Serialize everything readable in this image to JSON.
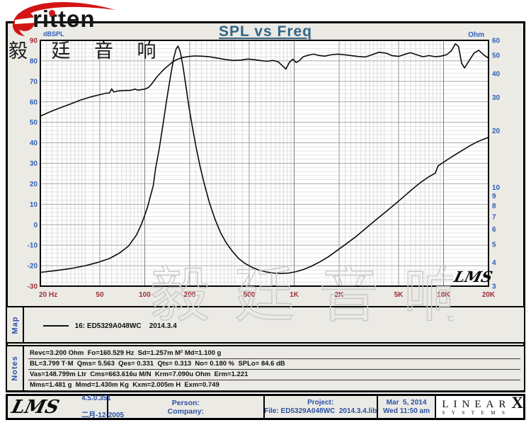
{
  "title": "SPL vs Freq",
  "brand": {
    "word": "ritten",
    "chinese": "毅 廷 音 响",
    "logo_color": "#d41414"
  },
  "watermark_text": "毅 廷 音 响",
  "plot_logo": "LMS",
  "chart_data": {
    "type": "line",
    "title": "SPL vs Freq",
    "x_axis": {
      "label": "Hz",
      "scale": "log",
      "min": 20,
      "max": 20000,
      "tick_values": [
        20,
        50,
        100,
        200,
        500,
        1000,
        2000,
        5000,
        10000,
        20000
      ],
      "tick_labels": [
        "20 Hz",
        "50",
        "100",
        "200",
        "500",
        "1K",
        "2K",
        "5K",
        "10K",
        "20K"
      ]
    },
    "y_left": {
      "label": "dBSPL",
      "scale": "linear",
      "min": -30,
      "max": 90,
      "ticks": [
        90,
        80,
        70,
        60,
        50,
        40,
        30,
        20,
        10,
        0,
        -10,
        -20,
        -30
      ]
    },
    "y_right": {
      "label": "Ohm",
      "scale": "log",
      "min": 3,
      "max": 60,
      "ticks": [
        60,
        50,
        40,
        30,
        20,
        10,
        9,
        8,
        7,
        6,
        5,
        4,
        3
      ]
    },
    "grid": "on",
    "series": [
      {
        "name": "SPL",
        "axis": "left",
        "points": [
          [
            20,
            53
          ],
          [
            23,
            55
          ],
          [
            27,
            57
          ],
          [
            32,
            59
          ],
          [
            37,
            60.8
          ],
          [
            43,
            62.3
          ],
          [
            50,
            63.5
          ],
          [
            55,
            64.2
          ],
          [
            58,
            64.3
          ],
          [
            60,
            66.3
          ],
          [
            62,
            64.8
          ],
          [
            66,
            65.3
          ],
          [
            72,
            65.5
          ],
          [
            80,
            65.6
          ],
          [
            86,
            66.2
          ],
          [
            90,
            65.7
          ],
          [
            100,
            66.2
          ],
          [
            106,
            67
          ],
          [
            112,
            69
          ],
          [
            120,
            72
          ],
          [
            130,
            74.8
          ],
          [
            140,
            77
          ],
          [
            152,
            79.2
          ],
          [
            163,
            80.6
          ],
          [
            178,
            81.6
          ],
          [
            195,
            82.1
          ],
          [
            215,
            82.4
          ],
          [
            240,
            82.3
          ],
          [
            270,
            82
          ],
          [
            305,
            81.4
          ],
          [
            345,
            80.7
          ],
          [
            390,
            80.2
          ],
          [
            440,
            80.4
          ],
          [
            490,
            80.9
          ],
          [
            540,
            80.6
          ],
          [
            600,
            80.1
          ],
          [
            660,
            79.8
          ],
          [
            720,
            80.2
          ],
          [
            780,
            79.6
          ],
          [
            830,
            77.8
          ],
          [
            880,
            76
          ],
          [
            930,
            79.3
          ],
          [
            980,
            80.8
          ],
          [
            1030,
            79.2
          ],
          [
            1080,
            80
          ],
          [
            1150,
            82
          ],
          [
            1250,
            82.8
          ],
          [
            1350,
            83.3
          ],
          [
            1450,
            82.7
          ],
          [
            1600,
            82.3
          ],
          [
            1750,
            82.9
          ],
          [
            1950,
            83.3
          ],
          [
            2150,
            83
          ],
          [
            2400,
            82.6
          ],
          [
            2700,
            82.1
          ],
          [
            3000,
            81.9
          ],
          [
            3300,
            82.9
          ],
          [
            3700,
            84.2
          ],
          [
            4100,
            83.8
          ],
          [
            4500,
            82.6
          ],
          [
            5000,
            82.2
          ],
          [
            5500,
            83.2
          ],
          [
            6000,
            84
          ],
          [
            6600,
            83
          ],
          [
            7300,
            82
          ],
          [
            8000,
            82.6
          ],
          [
            8800,
            82
          ],
          [
            9600,
            82.3
          ],
          [
            10500,
            83
          ],
          [
            11300,
            85
          ],
          [
            12000,
            88.3
          ],
          [
            12600,
            87
          ],
          [
            13200,
            79
          ],
          [
            13800,
            76.5
          ],
          [
            14800,
            80
          ],
          [
            16000,
            83.8
          ],
          [
            17200,
            85.2
          ],
          [
            18500,
            83
          ],
          [
            20000,
            81.3
          ]
        ]
      },
      {
        "name": "Impedance",
        "axis": "right",
        "points": [
          [
            20,
            3.55
          ],
          [
            25,
            3.62
          ],
          [
            32,
            3.72
          ],
          [
            40,
            3.85
          ],
          [
            48,
            4.0
          ],
          [
            58,
            4.2
          ],
          [
            68,
            4.5
          ],
          [
            78,
            4.9
          ],
          [
            88,
            5.6
          ],
          [
            96,
            6.5
          ],
          [
            104,
            7.8
          ],
          [
            110,
            9.2
          ],
          [
            114,
            10.2
          ],
          [
            118,
            12.5
          ],
          [
            125,
            16
          ],
          [
            133,
            22
          ],
          [
            141,
            30
          ],
          [
            149,
            39
          ],
          [
            156,
            48
          ],
          [
            162,
            54
          ],
          [
            167,
            56
          ],
          [
            173,
            52
          ],
          [
            180,
            44
          ],
          [
            188,
            35
          ],
          [
            197,
            27
          ],
          [
            208,
            21
          ],
          [
            220,
            16.5
          ],
          [
            235,
            12.8
          ],
          [
            252,
            10.2
          ],
          [
            272,
            8.2
          ],
          [
            295,
            6.8
          ],
          [
            320,
            5.8
          ],
          [
            350,
            5.1
          ],
          [
            385,
            4.6
          ],
          [
            425,
            4.2
          ],
          [
            470,
            3.95
          ],
          [
            520,
            3.78
          ],
          [
            580,
            3.65
          ],
          [
            650,
            3.57
          ],
          [
            730,
            3.52
          ],
          [
            820,
            3.5
          ],
          [
            920,
            3.52
          ],
          [
            1030,
            3.58
          ],
          [
            1160,
            3.68
          ],
          [
            1300,
            3.82
          ],
          [
            1500,
            4.05
          ],
          [
            1700,
            4.3
          ],
          [
            1950,
            4.65
          ],
          [
            2250,
            5.05
          ],
          [
            2600,
            5.5
          ],
          [
            3000,
            6.05
          ],
          [
            3500,
            6.7
          ],
          [
            4000,
            7.3
          ],
          [
            4600,
            8.0
          ],
          [
            5300,
            8.8
          ],
          [
            6100,
            9.7
          ],
          [
            7000,
            10.6
          ],
          [
            8000,
            11.4
          ],
          [
            8800,
            11.9
          ],
          [
            9200,
            13
          ],
          [
            10000,
            13.6
          ],
          [
            11500,
            14.6
          ],
          [
            13000,
            15.5
          ],
          [
            15000,
            16.6
          ],
          [
            17000,
            17.5
          ],
          [
            20000,
            18.4
          ]
        ]
      }
    ]
  },
  "colors": {
    "tick_blue": "#3060b5",
    "tick_maroon": "#9c3039",
    "curve": "#0b0b0b",
    "grid_major": "#a9a9a9",
    "grid_minor": "#e3e3e3",
    "grid_x_minor": "#dcdcdc",
    "grid_x_labeled": "#979797",
    "title_color": "#336685",
    "watermark_stroke": "#c9c9c9"
  },
  "map": {
    "label": "Map",
    "legend_text": "16: ED5329A048WC    2014.3.4"
  },
  "notes": {
    "label": "Notes",
    "lines": [
      "Revc=3.200 Ohm  Fo=160.529 Hz  Sd=1.257m M² Md=1.100 g",
      "BL=3.799 T·M  Qms= 5.563  Qes= 0.331  Qts= 0.313  No= 0.180 %  SPLo= 84.6 dB",
      "Vas=148.799m Ltr  Cms=663.616u M/N  Krm=7.090u Ohm  Erm=1.221",
      "Mms=1.481 g  Mmd=1.430m Kg  Kxm=2.005m H  Exm=0.749"
    ]
  },
  "footer": {
    "lms_logo": "LMS",
    "version": "4.5.0.351",
    "version_date": "二月-12-2005",
    "person_label": "Person:",
    "company_label": "Company:",
    "project_label": "Project:",
    "file_label": "File: ED5329A048WC  2014.3.4.lib",
    "date": "Mar  5, 2014",
    "time": "Wed 11:50 am",
    "linearx": {
      "name": "LINEAR",
      "x": "X",
      "sub": "SYSTEMS"
    }
  }
}
